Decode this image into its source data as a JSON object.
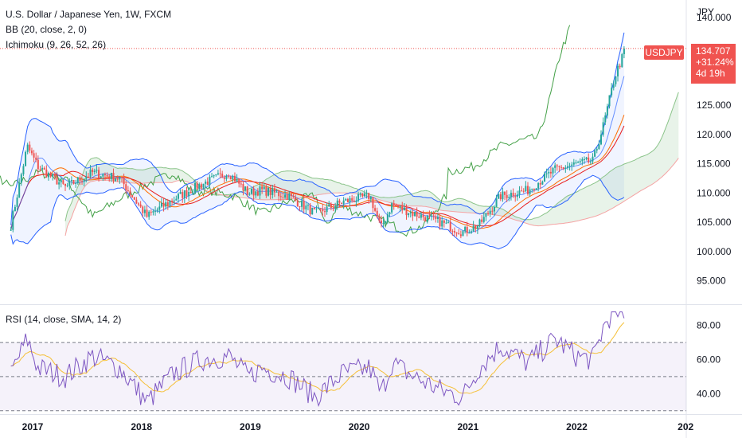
{
  "header": {
    "title": "U.S. Dollar / Japanese Yen, 1W, FXCM",
    "bb_label": "BB (20, close, 2, 0)",
    "ichimoku_label": "Ichimoku (9, 26, 52, 26)",
    "rsi_label": "RSI (14, close, SMA, 14, 2)"
  },
  "price_axis": {
    "currency": "JPY",
    "ticks": [
      "140.000",
      "125.000",
      "120.000",
      "115.000",
      "110.000",
      "105.000",
      "100.000",
      "95.000"
    ]
  },
  "rsi_axis": {
    "ticks": [
      "80.00",
      "60.00",
      "40.00"
    ]
  },
  "time_axis": {
    "ticks": [
      "2017",
      "2018",
      "2019",
      "2020",
      "2021",
      "2022",
      "202"
    ]
  },
  "last_price": {
    "symbol": "USDJPY",
    "price": "134.707",
    "change": "+31.24%",
    "countdown": "4d 19h"
  },
  "colors": {
    "up": "#26a69a",
    "down": "#ef5350",
    "bb": "#2962ff",
    "kijun": "#e91e1e",
    "chikou": "#43a047",
    "rsi": "#7e57c2",
    "rsi_ma": "#f5c038",
    "tag": "#f05350"
  },
  "chart_data": {
    "type": "line",
    "symbol": "USDJPY",
    "timeframe": "1W",
    "price_range": [
      91,
      143
    ],
    "rsi_range": [
      28,
      92
    ],
    "rsi_bands": [
      70,
      50,
      30
    ],
    "anchors": {
      "x": [
        2016.8,
        2016.95,
        2017.05,
        2017.3,
        2017.55,
        2017.8,
        2018.05,
        2018.3,
        2018.55,
        2018.8,
        2018.98,
        2019.1,
        2019.35,
        2019.6,
        2019.85,
        2020.1,
        2020.2,
        2020.3,
        2020.5,
        2020.75,
        2020.95,
        2021.1,
        2021.3,
        2021.55,
        2021.8,
        2022.0,
        2022.15,
        2022.25,
        2022.35,
        2022.45
      ],
      "close": [
        104.5,
        118.0,
        114.5,
        111.0,
        113.5,
        112.5,
        106.0,
        109.0,
        111.5,
        113.5,
        110.0,
        110.5,
        109.5,
        106.5,
        108.5,
        109.5,
        104.0,
        108.0,
        106.5,
        105.0,
        103.3,
        104.5,
        109.5,
        110.5,
        114.0,
        115.0,
        115.5,
        122.0,
        130.0,
        134.7
      ],
      "rsi": [
        52,
        72,
        55,
        50,
        62,
        55,
        35,
        52,
        60,
        62,
        50,
        55,
        50,
        38,
        52,
        55,
        40,
        58,
        50,
        42,
        38,
        55,
        68,
        58,
        72,
        62,
        60,
        80,
        90,
        82
      ]
    }
  }
}
